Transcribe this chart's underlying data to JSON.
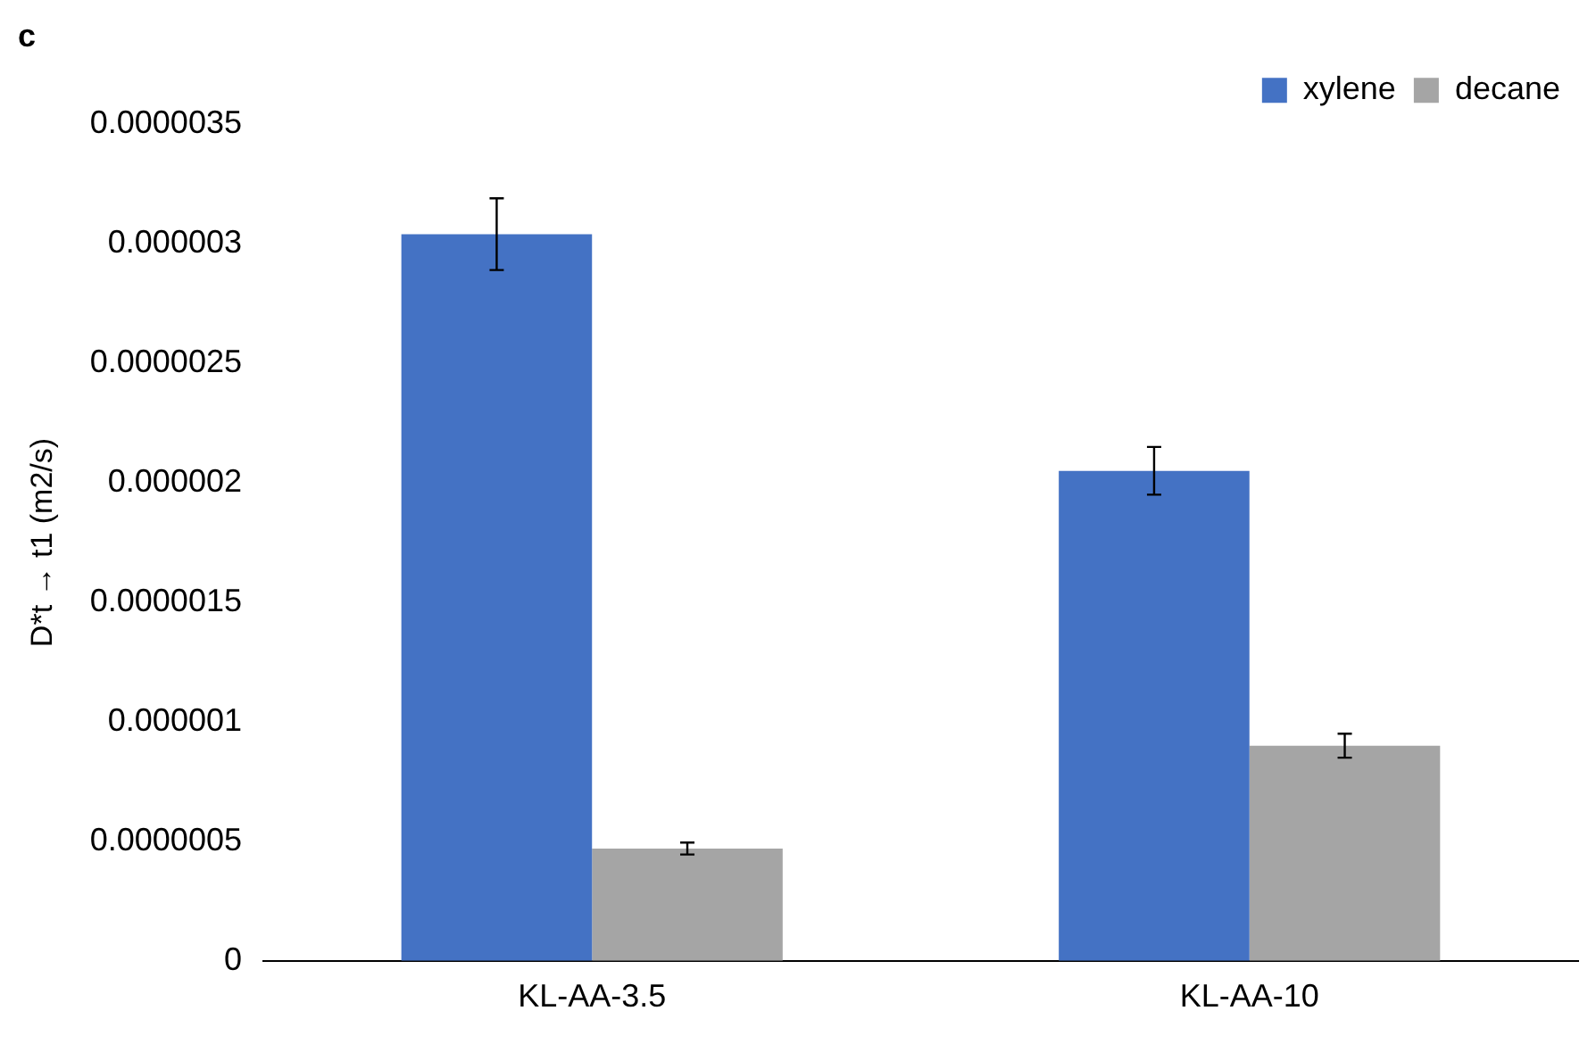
{
  "chart_data": {
    "type": "bar",
    "title": "c",
    "ylabel": "D*t → t1 (m2/s)",
    "categories": [
      "KL-AA-3.5",
      "KL-AA-10"
    ],
    "series": [
      {
        "name": "xylene",
        "color": "#4472c4",
        "values": [
          3.04e-06,
          2.05e-06
        ],
        "errors": [
          1.5e-07,
          1e-07
        ]
      },
      {
        "name": "decane",
        "color": "#a5a5a5",
        "values": [
          4.7e-07,
          9e-07
        ],
        "errors": [
          2.5e-08,
          5e-08
        ]
      }
    ],
    "ylim": [
      0,
      3.5e-06
    ],
    "yticks": [
      0,
      {
        "value": 5e-07,
        "label": "0.0000005"
      },
      {
        "value": 1e-06,
        "label": "0.000001"
      },
      {
        "value": 1.5e-06,
        "label": "0.0000015"
      },
      {
        "value": 2e-06,
        "label": "0.000002"
      },
      {
        "value": 2.5e-06,
        "label": "0.0000025"
      },
      {
        "value": 3e-06,
        "label": "0.000003"
      },
      {
        "value": 3.5e-06,
        "label": "0.0000035"
      }
    ],
    "grid": false,
    "legend": "top right"
  }
}
